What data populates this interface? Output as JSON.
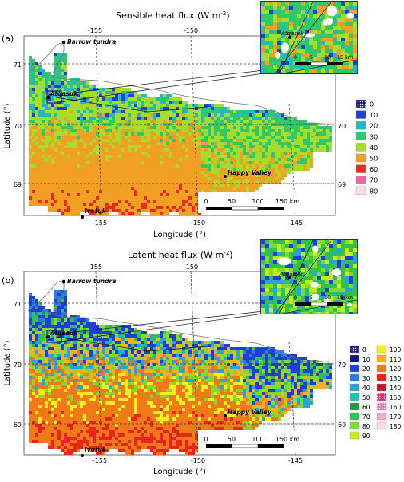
{
  "panels": [
    {
      "letter": "(a)",
      "title": "Sensible heat flux (W m",
      "title_sup": "-2",
      "title_close": ")",
      "xlabel": "Longitude (°)",
      "ylabel": "Latitude (°)",
      "lon_ticks": [
        "-155",
        "-150",
        "-145"
      ],
      "lat_ticks": [
        "71",
        "70",
        "69"
      ],
      "lon_ticks_top": [
        "-155",
        "-150"
      ],
      "lat_ticks_right": [
        "70",
        "69"
      ],
      "places": {
        "barrow": "Barrow tundra",
        "atqasuk": "Atqasuk",
        "happy": "Happy Valley",
        "ivotuk": "Ivotuk"
      },
      "scalebar": [
        "0",
        "50",
        "100",
        "150 km"
      ],
      "inset": {
        "place": "Atqasuk",
        "scale": [
          "0",
          "5",
          "10",
          "15 km"
        ]
      },
      "legend": [
        {
          "label": "0",
          "color": "#1a1a8c",
          "pattern": true
        },
        {
          "label": "10",
          "color": "#1f3fd6"
        },
        {
          "label": "20",
          "color": "#23b6c9"
        },
        {
          "label": "30",
          "color": "#2fc96a"
        },
        {
          "label": "40",
          "color": "#a6dd2a"
        },
        {
          "label": "50",
          "color": "#f2a023"
        },
        {
          "label": "60",
          "color": "#ea2a1e"
        },
        {
          "label": "70",
          "color": "#f064a6"
        },
        {
          "label": "80",
          "color": "#fbdbe6"
        }
      ]
    },
    {
      "letter": "(b)",
      "title": "Latent heat flux (W m",
      "title_sup": "-2",
      "title_close": ")",
      "xlabel": "Longitude (°)",
      "ylabel": "Latitude (°)",
      "lon_ticks": [
        "-155",
        "-150",
        "-145"
      ],
      "lat_ticks": [
        "71",
        "70",
        "69"
      ],
      "lon_ticks_top": [
        "-155",
        "-150"
      ],
      "lat_ticks_right": [
        "70",
        "69"
      ],
      "places": {
        "barrow": "Barrow tundra",
        "atqasuk": "Atqasuk",
        "happy": "Happy Valley",
        "ivotuk": "Ivotuk"
      },
      "scalebar": [
        "0",
        "50",
        "100",
        "150 km"
      ],
      "inset": {
        "place": "Atqasuk",
        "scale": [
          "0",
          "5",
          "10",
          "15 km"
        ]
      },
      "legend_col1": [
        {
          "label": "0",
          "color": "#1a1a8c",
          "pattern": true
        },
        {
          "label": "10",
          "color": "#141478"
        },
        {
          "label": "20",
          "color": "#1f3fd6"
        },
        {
          "label": "30",
          "color": "#2a7ee0"
        },
        {
          "label": "40",
          "color": "#26a6d8"
        },
        {
          "label": "50",
          "color": "#23c2b0"
        },
        {
          "label": "60",
          "color": "#1f9a3e"
        },
        {
          "label": "70",
          "color": "#32c24a"
        },
        {
          "label": "80",
          "color": "#7fdc2e"
        },
        {
          "label": "90",
          "color": "#c4ef1e"
        }
      ],
      "legend_col2": [
        {
          "label": "100",
          "color": "#f7ef1c"
        },
        {
          "label": "110",
          "color": "#f5b21e"
        },
        {
          "label": "120",
          "color": "#f07a18"
        },
        {
          "label": "130",
          "color": "#e6261e"
        },
        {
          "label": "140",
          "color": "#c0142a"
        },
        {
          "label": "150",
          "color": "#f0286a",
          "pattern": true
        },
        {
          "label": "160",
          "color": "#f47ab0",
          "pattern": true
        },
        {
          "label": "170",
          "color": "#f4a6cc"
        },
        {
          "label": "180",
          "color": "#fbdbe6"
        }
      ]
    }
  ]
}
